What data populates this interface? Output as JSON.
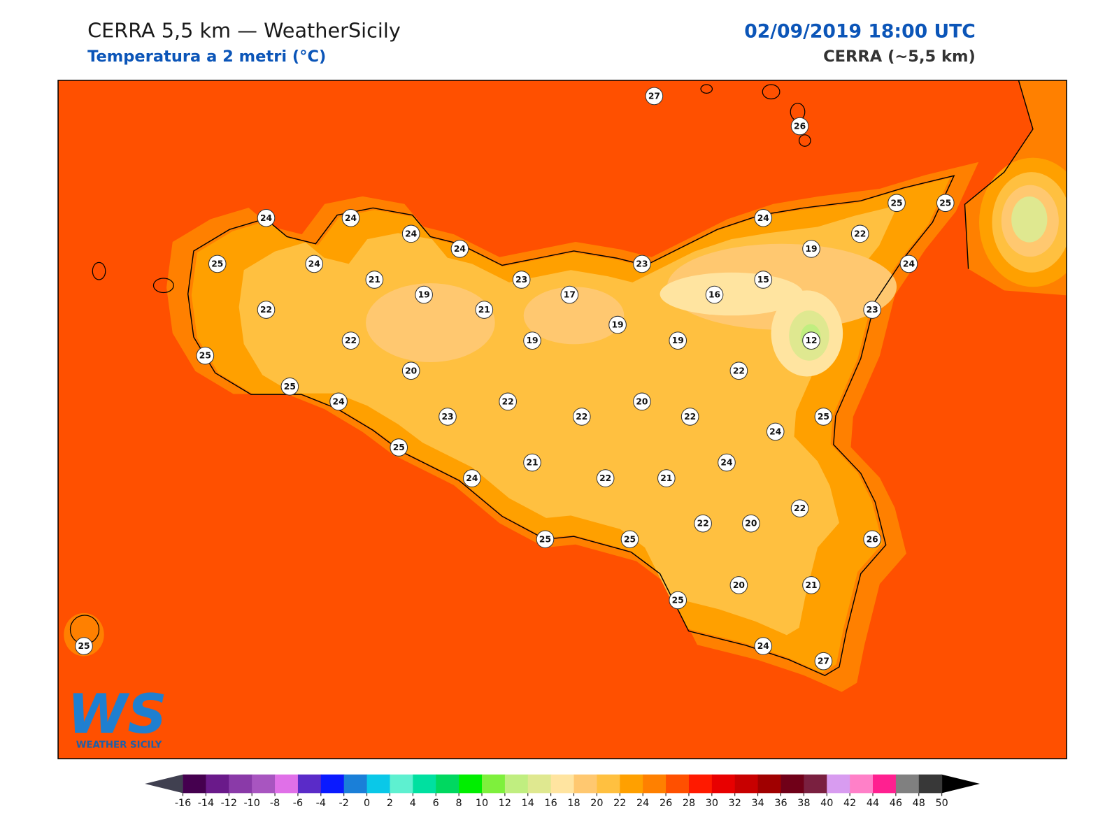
{
  "header": {
    "title": "CERRA 5,5 km — WeatherSicily",
    "subtitle": "Temperatura a 2 metri (°C)",
    "datetime": "02/09/2019 18:00 UTC",
    "model": "CERRA (~5,5 km)"
  },
  "logo": {
    "letters": "WS",
    "name": "WEATHER SICILY"
  },
  "station_values": [
    27,
    26,
    24,
    24,
    24,
    24,
    25,
    24,
    21,
    19,
    23,
    17,
    21,
    22,
    23,
    24,
    25,
    25,
    22,
    19,
    24,
    15,
    16,
    23,
    19,
    19,
    12,
    19,
    22,
    25,
    20,
    22,
    25,
    24,
    22,
    22,
    20,
    22,
    23,
    25,
    24,
    25,
    21,
    24,
    24,
    22,
    21,
    22,
    22,
    20,
    26,
    25,
    25,
    25,
    20,
    21,
    24,
    27,
    25
  ],
  "colorbar": {
    "ticks": [
      -16,
      -14,
      -12,
      -10,
      -8,
      -6,
      -4,
      -2,
      0,
      2,
      4,
      6,
      8,
      10,
      12,
      14,
      16,
      18,
      20,
      22,
      24,
      26,
      28,
      30,
      32,
      34,
      36,
      38,
      40,
      42,
      44,
      46,
      48,
      50
    ],
    "colors": [
      "#45004f",
      "#6a1a8a",
      "#8a3aa8",
      "#a855c0",
      "#e070e8",
      "#5a2bc8",
      "#0a1aff",
      "#1a7fd8",
      "#0ac8e8",
      "#5ef0d0",
      "#00e0a0",
      "#00d860",
      "#00ee00",
      "#7ef03c",
      "#c0ee80",
      "#dfe890",
      "#ffe4a0",
      "#ffc870",
      "#ffc040",
      "#ffa000",
      "#ff8000",
      "#ff5000",
      "#ff1a00",
      "#e80000",
      "#c80000",
      "#a00000",
      "#700018",
      "#7a2040",
      "#d89cf0",
      "#ff80c8",
      "#ff2090",
      "#808080",
      "#383838"
    ],
    "under_color": "#404050",
    "over_color": "#000000"
  }
}
